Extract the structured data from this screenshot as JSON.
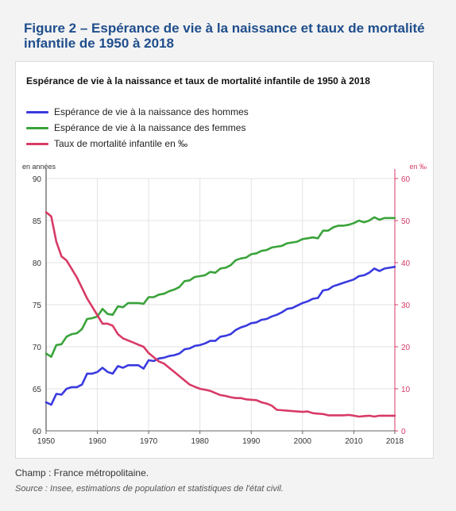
{
  "figure_title": "Figure 2 – Espérance de vie à la naissance et taux de mortalité infantile de 1950 à 2018",
  "footer": {
    "champ": "Champ : France métropolitaine.",
    "source": "Source : Insee, estimations de population et statistiques de l'état civil."
  },
  "chart_data": {
    "type": "line",
    "title": "Espérance de vie à la naissance et taux de mortalité infantile de 1950 à 2018",
    "left_axis_label": "en années",
    "right_axis_label": "en ‰",
    "x_ticks": [
      "1950",
      "1960",
      "1970",
      "1980",
      "1990",
      "2000",
      "2010",
      "2018"
    ],
    "x_tick_values": [
      1950,
      1960,
      1970,
      1980,
      1990,
      2000,
      2010,
      2018
    ],
    "xlim": [
      1950,
      2018
    ],
    "ylim_left": [
      60,
      90
    ],
    "ylim_right": [
      0,
      60
    ],
    "y_ticks_left": [
      "60",
      "65",
      "70",
      "75",
      "80",
      "85",
      "90"
    ],
    "y_ticks_right": [
      "0",
      "10",
      "20",
      "30",
      "40",
      "50",
      "60"
    ],
    "grid": true,
    "legend_position": "top-left",
    "x": [
      1950,
      1951,
      1952,
      1953,
      1954,
      1955,
      1956,
      1957,
      1958,
      1959,
      1960,
      1961,
      1962,
      1963,
      1964,
      1965,
      1966,
      1967,
      1968,
      1969,
      1970,
      1971,
      1972,
      1973,
      1974,
      1975,
      1976,
      1977,
      1978,
      1979,
      1980,
      1981,
      1982,
      1983,
      1984,
      1985,
      1986,
      1987,
      1988,
      1989,
      1990,
      1991,
      1992,
      1993,
      1994,
      1995,
      1996,
      1997,
      1998,
      1999,
      2000,
      2001,
      2002,
      2003,
      2004,
      2005,
      2006,
      2007,
      2008,
      2009,
      2010,
      2011,
      2012,
      2013,
      2014,
      2015,
      2016,
      2017,
      2018
    ],
    "series": [
      {
        "name": "Espérance de vie à la naissance des hommes",
        "axis": "left",
        "color": "#3a3ae0",
        "values": [
          63.4,
          63.1,
          64.4,
          64.3,
          65.0,
          65.2,
          65.2,
          65.5,
          66.8,
          66.8,
          67.0,
          67.5,
          67.0,
          66.8,
          67.7,
          67.5,
          67.8,
          67.8,
          67.8,
          67.4,
          68.4,
          68.3,
          68.6,
          68.7,
          68.9,
          69.0,
          69.2,
          69.7,
          69.8,
          70.1,
          70.2,
          70.4,
          70.7,
          70.7,
          71.2,
          71.3,
          71.5,
          72.0,
          72.3,
          72.5,
          72.8,
          72.9,
          73.2,
          73.3,
          73.6,
          73.8,
          74.1,
          74.5,
          74.6,
          74.9,
          75.2,
          75.4,
          75.7,
          75.8,
          76.7,
          76.8,
          77.2,
          77.4,
          77.6,
          77.8,
          78.0,
          78.4,
          78.5,
          78.8,
          79.3,
          79.0,
          79.3,
          79.4,
          79.5
        ]
      },
      {
        "name": "Espérance de vie à la naissance des femmes",
        "axis": "left",
        "color": "#3aa33a",
        "values": [
          69.2,
          68.8,
          70.2,
          70.3,
          71.2,
          71.5,
          71.6,
          72.1,
          73.3,
          73.4,
          73.6,
          74.5,
          73.9,
          73.8,
          74.8,
          74.7,
          75.2,
          75.2,
          75.2,
          75.1,
          75.9,
          75.9,
          76.2,
          76.3,
          76.6,
          76.8,
          77.1,
          77.8,
          77.9,
          78.3,
          78.4,
          78.5,
          78.9,
          78.8,
          79.3,
          79.4,
          79.7,
          80.3,
          80.5,
          80.6,
          81.0,
          81.1,
          81.4,
          81.5,
          81.8,
          81.9,
          82.0,
          82.3,
          82.4,
          82.5,
          82.8,
          82.9,
          83.0,
          82.9,
          83.8,
          83.8,
          84.2,
          84.4,
          84.4,
          84.5,
          84.7,
          85.0,
          84.8,
          85.0,
          85.4,
          85.1,
          85.3,
          85.3,
          85.3
        ]
      },
      {
        "name": "Taux de mortalité infantile en ‰",
        "axis": "right",
        "color": "#d83a66",
        "values": [
          52.0,
          51.0,
          45.0,
          41.5,
          40.5,
          38.5,
          36.5,
          34.0,
          31.5,
          29.5,
          27.5,
          25.5,
          25.5,
          25.0,
          23.0,
          22.0,
          21.5,
          21.0,
          20.5,
          20.0,
          18.5,
          17.5,
          16.5,
          16.0,
          15.0,
          14.0,
          13.0,
          12.0,
          11.0,
          10.5,
          10.0,
          9.8,
          9.5,
          9.0,
          8.5,
          8.3,
          8.0,
          7.8,
          7.8,
          7.5,
          7.4,
          7.3,
          6.8,
          6.5,
          6.0,
          5.0,
          4.9,
          4.8,
          4.7,
          4.6,
          4.5,
          4.6,
          4.2,
          4.1,
          4.0,
          3.7,
          3.7,
          3.7,
          3.7,
          3.8,
          3.6,
          3.4,
          3.5,
          3.6,
          3.4,
          3.6,
          3.6,
          3.6,
          3.6
        ]
      }
    ]
  }
}
